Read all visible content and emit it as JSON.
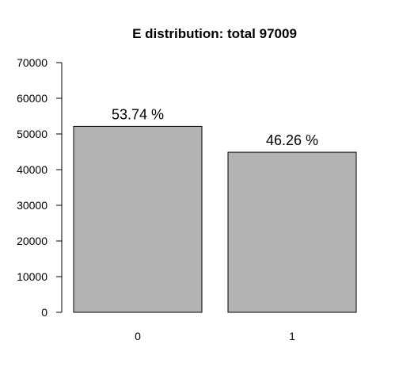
{
  "chart_data": {
    "type": "bar",
    "title": "E distribution: total  97009",
    "categories": [
      "0",
      "1"
    ],
    "values": [
      52131,
      44878
    ],
    "data_labels": [
      "53.74 %",
      "46.26 %"
    ],
    "ylim": [
      0,
      70000
    ],
    "yticks": [
      0,
      10000,
      20000,
      30000,
      40000,
      50000,
      60000,
      70000
    ],
    "xlabel": "",
    "ylabel": "",
    "grid": false,
    "bar_color": "#b3b3b3",
    "bar_stroke": "#000000"
  }
}
